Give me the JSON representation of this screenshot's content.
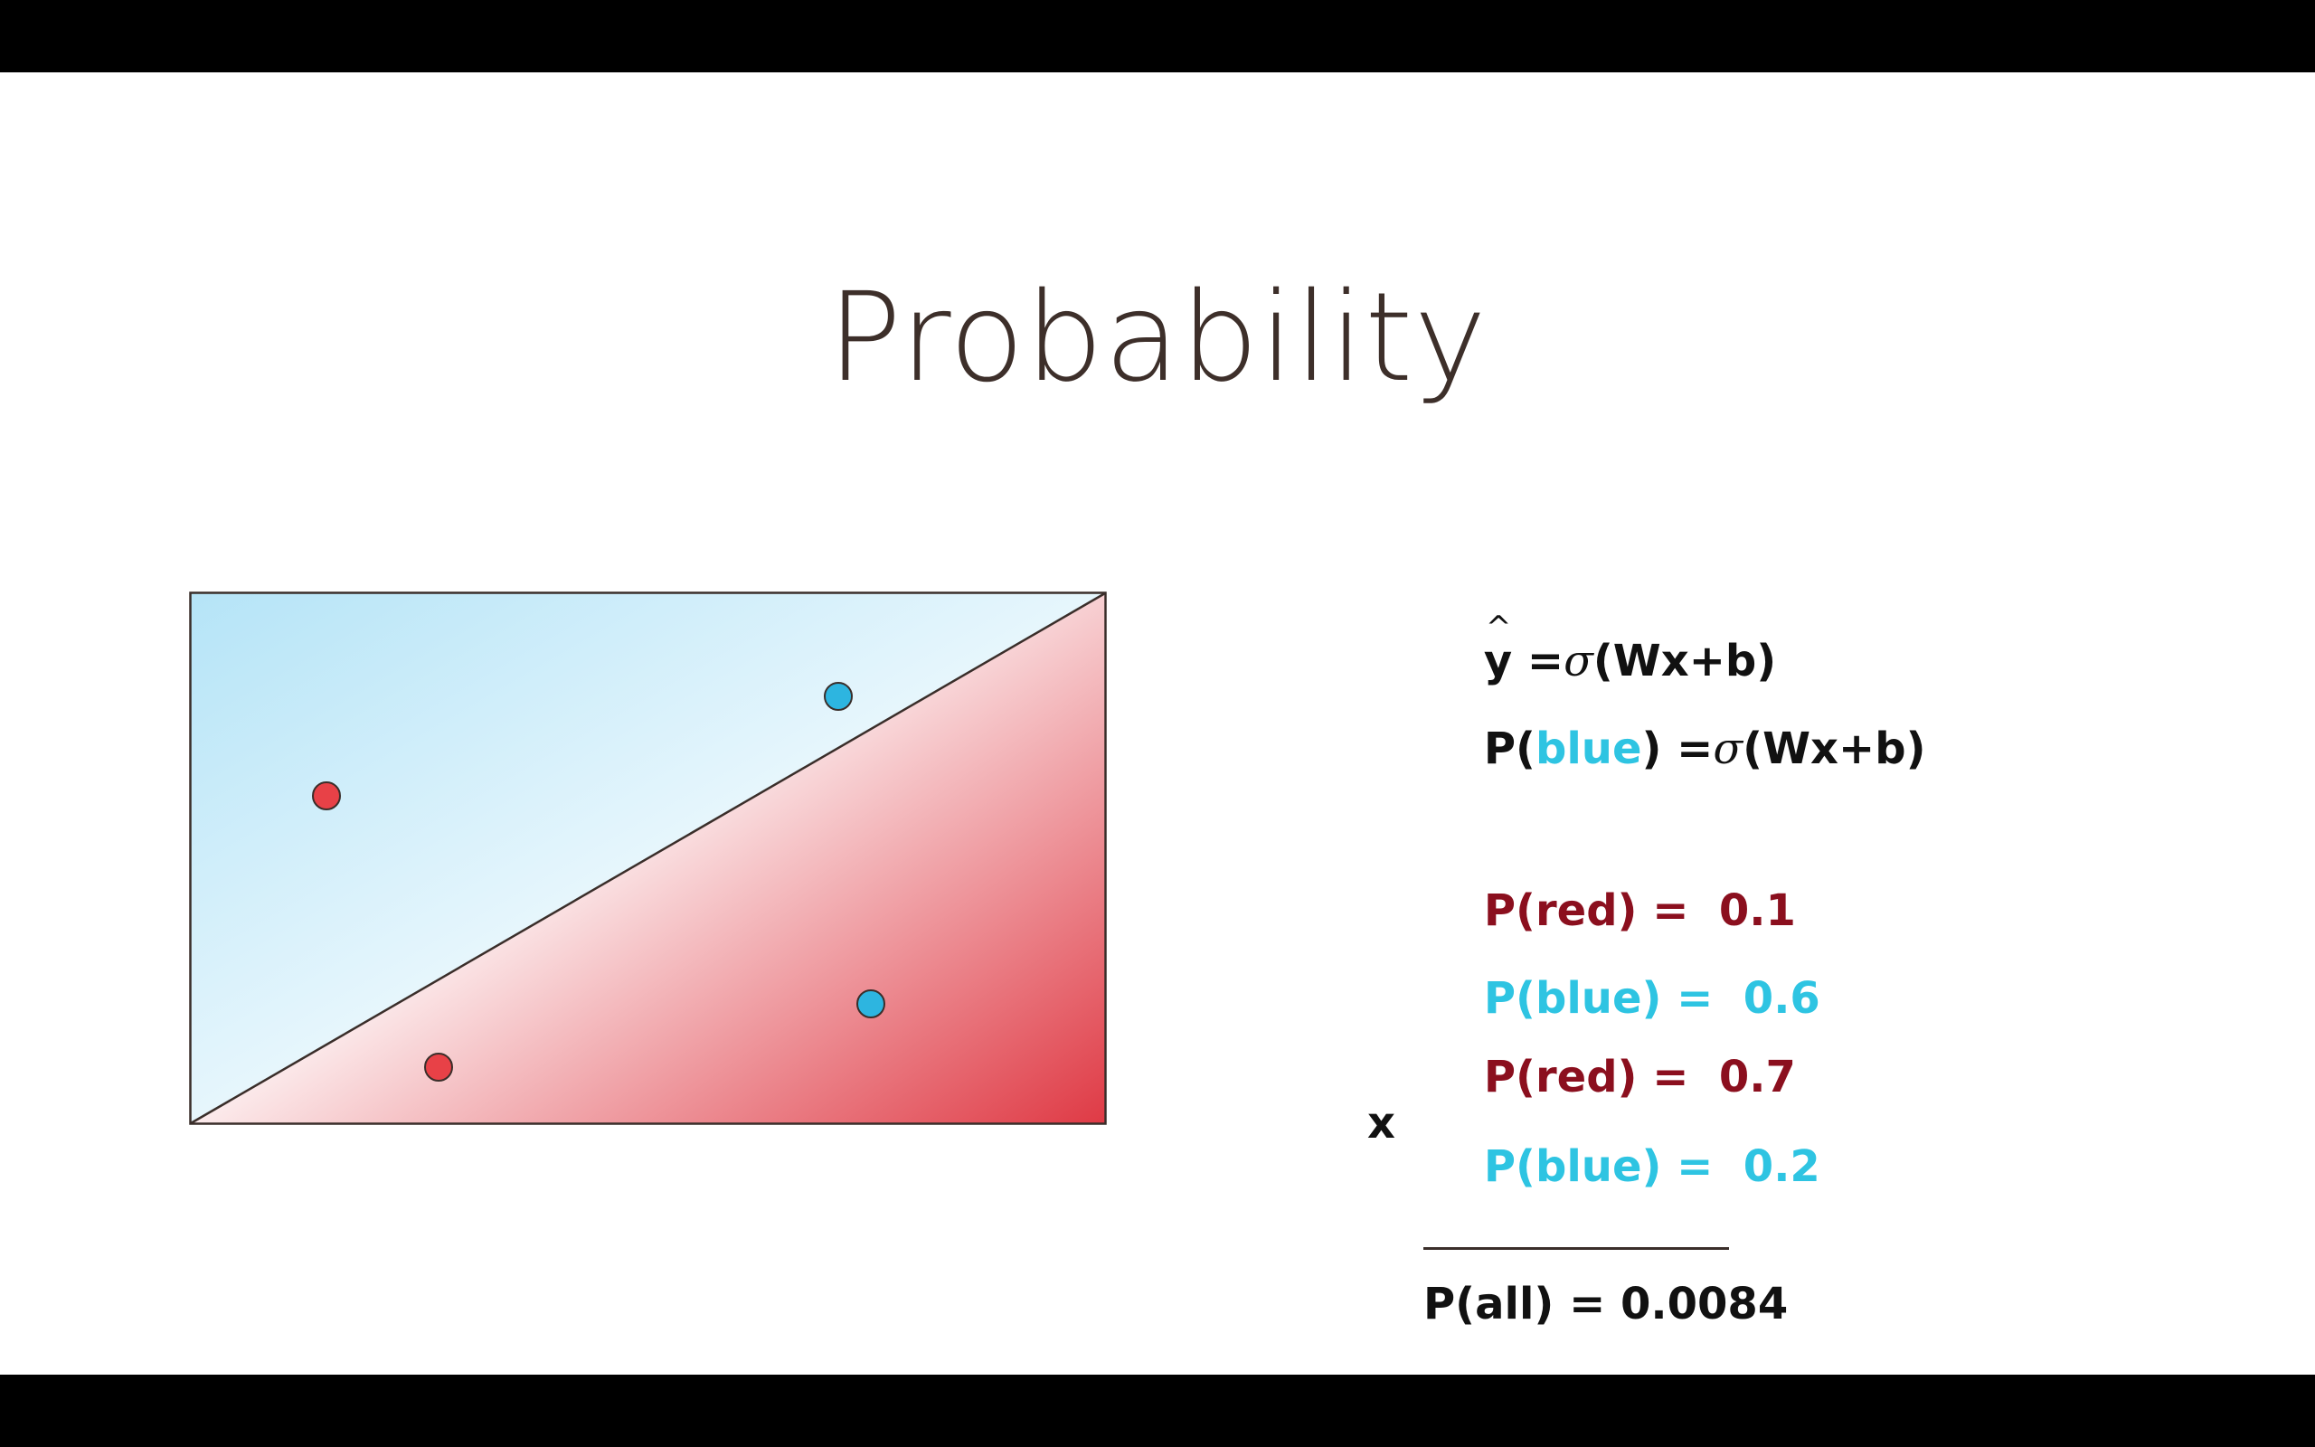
{
  "title": "Probability",
  "formulas": {
    "yhat": {
      "lhs": "y",
      "hat": "^",
      "eq": " =",
      "sigma": "σ",
      "rhs": "(Wx+b)"
    },
    "pblue": {
      "prefix": "P(",
      "word": "blue",
      "eq": ") =",
      "sigma": "σ",
      "rhs": "(Wx+b)"
    }
  },
  "probabilities": [
    {
      "label": "P(red) =",
      "value": "0.1",
      "color": "red"
    },
    {
      "label": "P(blue) =",
      "value": "0.6",
      "color": "cyan"
    },
    {
      "label": "P(red) =",
      "value": "0.7",
      "color": "red"
    },
    {
      "label": "P(blue) =",
      "value": "0.2",
      "color": "cyan"
    }
  ],
  "multiply_sign": "x",
  "result": "P(all) = 0.0084",
  "colors": {
    "red_text": "#8b0f1e",
    "cyan_text": "#2ec4e2",
    "blue_region": "#b5e4f7",
    "red_region": "#df3a45",
    "red_point": "#e84147",
    "blue_point": "#2db5e0"
  },
  "points": [
    {
      "class": "red"
    },
    {
      "class": "blue"
    },
    {
      "class": "red"
    },
    {
      "class": "blue"
    }
  ]
}
